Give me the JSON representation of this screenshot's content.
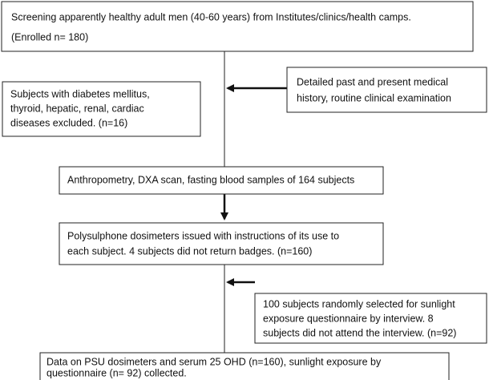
{
  "boxes": [
    {
      "lines": [
        "Screening apparently healthy adult men (40-60 years) from Institutes/clinics/health camps.",
        "(Enrolled n= 180)"
      ]
    },
    {
      "lines": [
        "Subjects with diabetes mellitus,",
        "thyroid, hepatic, renal, cardiac",
        "diseases excluded. (n=16)"
      ]
    },
    {
      "lines": [
        "Detailed past and present medical",
        "history, routine clinical examination"
      ]
    },
    {
      "lines": [
        "Anthropometry, DXA scan, fasting blood samples of 164 subjects"
      ]
    },
    {
      "lines": [
        "Polysulphone dosimeters issued with instructions of its use to",
        "each subject. 4 subjects did not return badges. (n=160)"
      ]
    },
    {
      "lines": [
        "100 subjects randomly selected for sunlight",
        "exposure questionnaire by interview. 8",
        "subjects did not attend the interview. (n=92)"
      ]
    },
    {
      "lines": [
        "Data on PSU dosimeters and serum 25 OHD (n=160), sunlight exposure by",
        "questionnaire (n= 92) collected."
      ]
    }
  ]
}
